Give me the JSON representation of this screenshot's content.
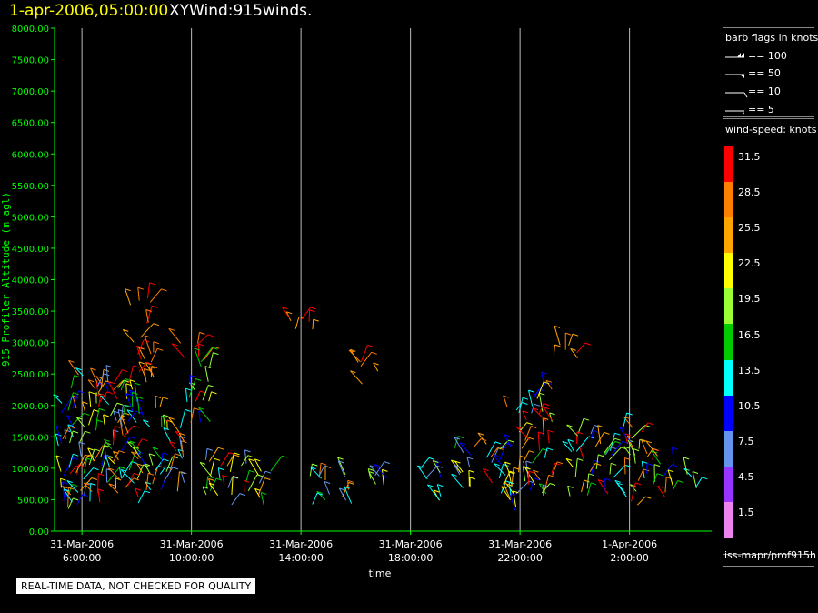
{
  "header": {
    "date_time": "1-apr-2006,05:00:00",
    "title": "XYWind:915winds."
  },
  "colors": {
    "background": "#000000",
    "axis_text": "#00ff00",
    "title_date": "#ffff00",
    "gridline": "#bbbbbb"
  },
  "barb_legend": {
    "title": "barb flags in knots",
    "items": [
      {
        "label": "== 100",
        "icon": "pennant-flag"
      },
      {
        "label": "== 50",
        "icon": "pennant-flag"
      },
      {
        "label": "== 10",
        "icon": "full-barb"
      },
      {
        "label": "== 5",
        "icon": "half-barb"
      }
    ]
  },
  "speed_legend": {
    "title": "wind-speed: knots",
    "bins": [
      {
        "label": "31.5",
        "color": "#ff0000"
      },
      {
        "label": "28.5",
        "color": "#ff7f00"
      },
      {
        "label": "25.5",
        "color": "#ffa500"
      },
      {
        "label": "22.5",
        "color": "#ffff00"
      },
      {
        "label": "19.5",
        "color": "#99ff33"
      },
      {
        "label": "16.5",
        "color": "#00cc00"
      },
      {
        "label": "13.5",
        "color": "#00ffff"
      },
      {
        "label": "10.5",
        "color": "#0000ff"
      },
      {
        "label": "7.5",
        "color": "#6495ed"
      },
      {
        "label": "4.5",
        "color": "#9933ff"
      },
      {
        "label": "1.5",
        "color": "#ee82ee"
      }
    ]
  },
  "source": "iss-mapr/prof915h",
  "quality_note": "REAL-TIME DATA, NOT CHECKED FOR QUALITY",
  "chart_data": {
    "type": "scatter",
    "title": "XYWind:915winds.",
    "xlabel": "time",
    "ylabel": "915 Profiler Altitude (m agl)",
    "xlim": [
      "31-Mar-2006 05:00",
      "1-Apr-2006 05:00"
    ],
    "ylim": [
      0,
      8000
    ],
    "y_ticks": [
      "0.00",
      "500.00",
      "1000.00",
      "1500.00",
      "2000.00",
      "2500.00",
      "3000.00",
      "3500.00",
      "4000.00",
      "4500.00",
      "5000.00",
      "5500.00",
      "6000.00",
      "6500.00",
      "7000.00",
      "7500.00",
      "8000.00"
    ],
    "x_ticks": [
      {
        "date": "31-Mar-2006",
        "time": "6:00:00"
      },
      {
        "date": "31-Mar-2006",
        "time": "10:00:00"
      },
      {
        "date": "31-Mar-2006",
        "time": "14:00:00"
      },
      {
        "date": "31-Mar-2006",
        "time": "18:00:00"
      },
      {
        "date": "31-Mar-2006",
        "time": "22:00:00"
      },
      {
        "date": "1-Apr-2006",
        "time": "2:00:00"
      }
    ],
    "grid": "vertical at x ticks",
    "clusters": [
      {
        "time": "31-Mar-2006 05:30",
        "alt_min": 300,
        "alt_max": 2300
      },
      {
        "time": "31-Mar-2006 06:15",
        "alt_min": 400,
        "alt_max": 2800
      },
      {
        "time": "31-Mar-2006 07:00",
        "alt_min": 400,
        "alt_max": 2500
      },
      {
        "time": "31-Mar-2006 07:45",
        "alt_min": 500,
        "alt_max": 2300
      },
      {
        "time": "31-Mar-2006 08:10",
        "alt_min": 2300,
        "alt_max": 3800
      },
      {
        "time": "31-Mar-2006 08:30",
        "alt_min": 400,
        "alt_max": 2000
      },
      {
        "time": "31-Mar-2006 09:20",
        "alt_min": 500,
        "alt_max": 1800
      },
      {
        "time": "31-Mar-2006 10:00",
        "alt_min": 2700,
        "alt_max": 3100
      },
      {
        "time": "31-Mar-2006 10:15",
        "alt_min": 1700,
        "alt_max": 2700
      },
      {
        "time": "31-Mar-2006 10:40",
        "alt_min": 500,
        "alt_max": 1300
      },
      {
        "time": "31-Mar-2006 11:40",
        "alt_min": 400,
        "alt_max": 1100
      },
      {
        "time": "31-Mar-2006 12:30",
        "alt_min": 400,
        "alt_max": 1000
      },
      {
        "time": "31-Mar-2006 14:00",
        "alt_min": 3200,
        "alt_max": 3400
      },
      {
        "time": "31-Mar-2006 14:30",
        "alt_min": 400,
        "alt_max": 900
      },
      {
        "time": "31-Mar-2006 15:30",
        "alt_min": 400,
        "alt_max": 900
      },
      {
        "time": "31-Mar-2006 16:30",
        "alt_min": 2300,
        "alt_max": 2700
      },
      {
        "time": "31-Mar-2006 17:00",
        "alt_min": 500,
        "alt_max": 900
      },
      {
        "time": "31-Mar-2006 18:40",
        "alt_min": 400,
        "alt_max": 1000
      },
      {
        "time": "31-Mar-2006 20:00",
        "alt_min": 600,
        "alt_max": 1400
      },
      {
        "time": "31-Mar-2006 21:00",
        "alt_min": 500,
        "alt_max": 1400
      },
      {
        "time": "31-Mar-2006 22:00",
        "alt_min": 300,
        "alt_max": 2000
      },
      {
        "time": "31-Mar-2006 22:45",
        "alt_min": 500,
        "alt_max": 2400
      },
      {
        "time": "31-Mar-2006 23:40",
        "alt_min": 2700,
        "alt_max": 3000
      },
      {
        "time": "1-Apr-2006 00:15",
        "alt_min": 500,
        "alt_max": 1600
      },
      {
        "time": "1-Apr-2006 01:00",
        "alt_min": 400,
        "alt_max": 1500
      },
      {
        "time": "1-Apr-2006 02:00",
        "alt_min": 400,
        "alt_max": 1700
      },
      {
        "time": "1-Apr-2006 03:00",
        "alt_min": 500,
        "alt_max": 1400
      },
      {
        "time": "1-Apr-2006 04:00",
        "alt_min": 600,
        "alt_max": 1100
      }
    ]
  }
}
